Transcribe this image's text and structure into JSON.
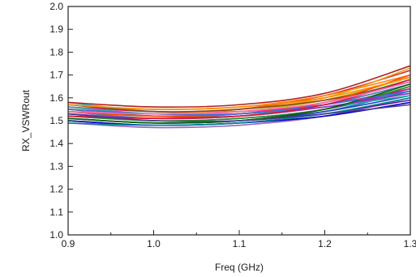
{
  "chart_data": {
    "type": "line",
    "title": "",
    "xlabel": "Freq (GHz)",
    "ylabel": "RX_VSWRout",
    "xlim": [
      0.9,
      1.3
    ],
    "ylim": [
      1.0,
      2.0
    ],
    "x_ticks": [
      "0.9",
      "1.0",
      "1.1",
      "1.2",
      "1.3"
    ],
    "y_ticks": [
      "1.0",
      "1.1",
      "1.2",
      "1.3",
      "1.4",
      "1.5",
      "1.6",
      "1.7",
      "1.8",
      "1.9",
      "2.0"
    ],
    "grid": false,
    "legend": "none",
    "x": [
      0.9,
      1.0,
      1.1,
      1.2,
      1.3
    ],
    "series": [
      {
        "color": "#d62728",
        "values": [
          1.56,
          1.53,
          1.55,
          1.61,
          1.72
        ]
      },
      {
        "color": "#ff7f0e",
        "values": [
          1.57,
          1.55,
          1.56,
          1.61,
          1.7
        ]
      },
      {
        "color": "#e377c2",
        "values": [
          1.53,
          1.51,
          1.53,
          1.57,
          1.66
        ]
      },
      {
        "color": "#2ca02c",
        "values": [
          1.55,
          1.52,
          1.53,
          1.58,
          1.68
        ]
      },
      {
        "color": "#1f77b4",
        "values": [
          1.51,
          1.49,
          1.5,
          1.54,
          1.63
        ]
      },
      {
        "color": "#17becf",
        "values": [
          1.58,
          1.54,
          1.54,
          1.58,
          1.67
        ]
      },
      {
        "color": "#9467bd",
        "values": [
          1.49,
          1.47,
          1.48,
          1.52,
          1.6
        ]
      },
      {
        "color": "#8c564b",
        "values": [
          1.55,
          1.52,
          1.52,
          1.56,
          1.62
        ]
      },
      {
        "color": "#bcbd22",
        "values": [
          1.54,
          1.52,
          1.54,
          1.59,
          1.69
        ]
      },
      {
        "color": "#1f3fbf",
        "values": [
          1.52,
          1.5,
          1.5,
          1.54,
          1.61
        ]
      },
      {
        "color": "#ff1493",
        "values": [
          1.56,
          1.54,
          1.54,
          1.57,
          1.64
        ]
      },
      {
        "color": "#e8a317",
        "values": [
          1.55,
          1.53,
          1.55,
          1.6,
          1.73
        ]
      },
      {
        "color": "#0a8f8f",
        "values": [
          1.53,
          1.5,
          1.51,
          1.55,
          1.63
        ]
      },
      {
        "color": "#6a0dad",
        "values": [
          1.5,
          1.48,
          1.49,
          1.53,
          1.59
        ]
      },
      {
        "color": "#b22222",
        "values": [
          1.58,
          1.56,
          1.57,
          1.62,
          1.74
        ]
      },
      {
        "color": "#228b22",
        "values": [
          1.52,
          1.5,
          1.51,
          1.55,
          1.65
        ]
      },
      {
        "color": "#4682b4",
        "values": [
          1.54,
          1.51,
          1.52,
          1.57,
          1.66
        ]
      },
      {
        "color": "#c71585",
        "values": [
          1.51,
          1.49,
          1.5,
          1.55,
          1.64
        ]
      },
      {
        "color": "#8b4513",
        "values": [
          1.57,
          1.54,
          1.55,
          1.59,
          1.67
        ]
      },
      {
        "color": "#0000cd",
        "values": [
          1.5,
          1.48,
          1.49,
          1.52,
          1.58
        ]
      },
      {
        "color": "#20b2aa",
        "values": [
          1.56,
          1.53,
          1.53,
          1.56,
          1.61
        ]
      },
      {
        "color": "#ff4500",
        "values": [
          1.54,
          1.52,
          1.53,
          1.58,
          1.7
        ]
      },
      {
        "color": "#9932cc",
        "values": [
          1.53,
          1.51,
          1.52,
          1.56,
          1.62
        ]
      },
      {
        "color": "#006400",
        "values": [
          1.51,
          1.49,
          1.5,
          1.55,
          1.66
        ]
      },
      {
        "color": "#4169e1",
        "values": [
          1.55,
          1.53,
          1.53,
          1.57,
          1.63
        ]
      },
      {
        "color": "#dc143c",
        "values": [
          1.52,
          1.51,
          1.52,
          1.57,
          1.68
        ]
      },
      {
        "color": "#008b8b",
        "values": [
          1.49,
          1.48,
          1.49,
          1.53,
          1.6
        ]
      },
      {
        "color": "#ff8c00",
        "values": [
          1.57,
          1.55,
          1.56,
          1.6,
          1.69
        ]
      },
      {
        "color": "#483d8b",
        "values": [
          1.53,
          1.5,
          1.5,
          1.53,
          1.57
        ]
      },
      {
        "color": "#ff69b4",
        "values": [
          1.54,
          1.53,
          1.54,
          1.58,
          1.67
        ]
      }
    ]
  }
}
